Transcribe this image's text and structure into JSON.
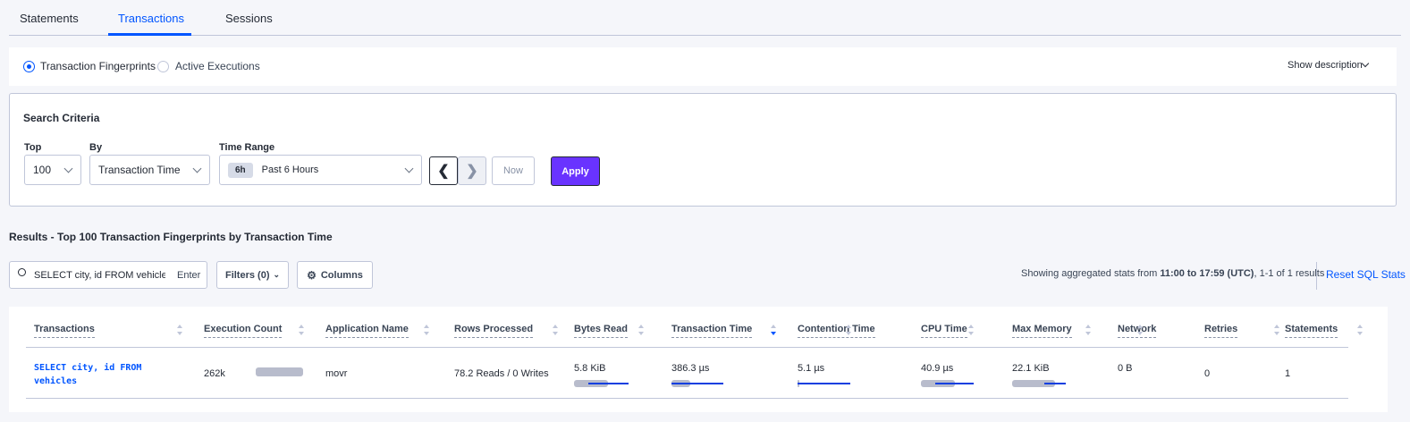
{
  "tabs": [
    {
      "label": "Statements"
    },
    {
      "label": "Transactions",
      "active": true
    },
    {
      "label": "Sessions"
    }
  ],
  "view_toggle": {
    "options": [
      {
        "label": "Transaction Fingerprints",
        "selected": true
      },
      {
        "label": "Active Executions",
        "selected": false
      }
    ],
    "show_description": "Show description"
  },
  "search_criteria": {
    "title": "Search Criteria",
    "top": {
      "label": "Top",
      "value": "100"
    },
    "by": {
      "label": "By",
      "value": "Transaction Time"
    },
    "time_range": {
      "label": "Time Range",
      "badge": "6h",
      "value": "Past 6 Hours"
    },
    "now_label": "Now",
    "apply_label": "Apply"
  },
  "results": {
    "title": "Results - Top 100 Transaction Fingerprints by Transaction Time",
    "search_value": "SELECT city, id FROM vehicles W",
    "search_enter": "Enter",
    "filters_label": "Filters (0)",
    "columns_label": "Columns",
    "stats_prefix": "Showing aggregated stats from ",
    "stats_range": "11:00 to 17:59",
    "stats_tz": "(UTC)",
    "stats_suffix": ", 1-1 of 1 results",
    "reset_label": "Reset SQL Stats"
  },
  "table": {
    "columns": [
      "Transactions",
      "Execution Count",
      "Application Name",
      "Rows Processed",
      "Bytes Read",
      "Transaction Time",
      "Contention Time",
      "CPU Time",
      "Max Memory",
      "Network",
      "Retries",
      "Statements"
    ],
    "sorted_column": "Transaction Time",
    "sort_direction": "descending",
    "rows": [
      {
        "transaction_line1": "SELECT city, id FROM",
        "transaction_line2": "vehicles",
        "execution_count": "262k",
        "application_name": "movr",
        "rows_processed": "78.2 Reads / 0 Writes",
        "bytes_read": "5.8 KiB",
        "transaction_time": "386.3 µs",
        "contention_time": "5.1 µs",
        "cpu_time": "40.9 µs",
        "max_memory": "22.1 KiB",
        "network": "0 B",
        "retries": "0",
        "statements": "1"
      }
    ]
  },
  "colors": {
    "accent": "#0055ff",
    "apply": "#6933ff",
    "bar": "#b8bccc",
    "deviation": "#0e3fe0"
  }
}
